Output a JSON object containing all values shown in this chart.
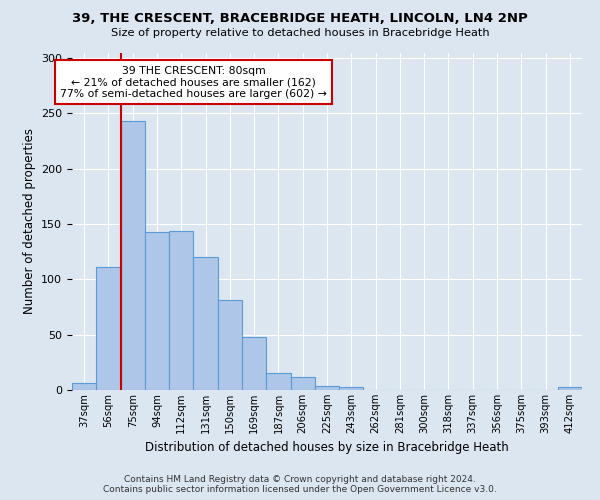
{
  "title1": "39, THE CRESCENT, BRACEBRIDGE HEATH, LINCOLN, LN4 2NP",
  "title2": "Size of property relative to detached houses in Bracebridge Heath",
  "xlabel": "Distribution of detached houses by size in Bracebridge Heath",
  "ylabel": "Number of detached properties",
  "footer1": "Contains HM Land Registry data © Crown copyright and database right 2024.",
  "footer2": "Contains public sector information licensed under the Open Government Licence v3.0.",
  "annotation_title": "39 THE CRESCENT: 80sqm",
  "annotation_line1": "← 21% of detached houses are smaller (162)",
  "annotation_line2": "77% of semi-detached houses are larger (602) →",
  "categories": [
    "37sqm",
    "56sqm",
    "75sqm",
    "94sqm",
    "112sqm",
    "131sqm",
    "150sqm",
    "169sqm",
    "187sqm",
    "206sqm",
    "225sqm",
    "243sqm",
    "262sqm",
    "281sqm",
    "300sqm",
    "318sqm",
    "337sqm",
    "356sqm",
    "375sqm",
    "393sqm",
    "412sqm"
  ],
  "bar_heights": [
    6,
    111,
    243,
    143,
    144,
    120,
    81,
    48,
    15,
    12,
    4,
    3,
    0,
    0,
    0,
    0,
    0,
    0,
    0,
    0,
    3
  ],
  "property_line_idx": 2,
  "bar_color": "#aec6e8",
  "bar_edge_color": "#5b9bd5",
  "line_color": "#cc0000",
  "background_color": "#dce6f1",
  "ylim": [
    0,
    305
  ],
  "yticks": [
    0,
    50,
    100,
    150,
    200,
    250,
    300
  ]
}
